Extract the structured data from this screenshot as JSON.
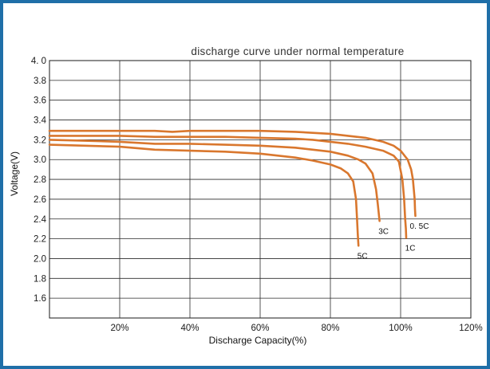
{
  "chart_data": {
    "type": "line",
    "title": "discharge curve under normal temperature",
    "xlabel": "Discharge Capacity(%)",
    "ylabel": "Voltage(V)",
    "xlim": [
      0,
      120
    ],
    "ylim": [
      1.4,
      4.0
    ],
    "xticks": [
      "20%",
      "40%",
      "60%",
      "80%",
      "100%",
      "120%"
    ],
    "xtick_values": [
      20,
      40,
      60,
      80,
      100,
      120
    ],
    "yticks": [
      "4. 0",
      "3.8",
      "3.6",
      "3.4",
      "3.2",
      "3.0",
      "2.8",
      "2.6",
      "2.4",
      "2.2",
      "2.0",
      "1.8",
      "1.6"
    ],
    "ytick_values": [
      4.0,
      3.8,
      3.6,
      3.4,
      3.2,
      3.0,
      2.8,
      2.6,
      2.4,
      2.2,
      2.0,
      1.8,
      1.6
    ],
    "grid": true,
    "line_color": "#d9772e",
    "series": [
      {
        "name": "0. 5C",
        "x": [
          0,
          10,
          20,
          30,
          35,
          40,
          50,
          60,
          70,
          75,
          80,
          85,
          90,
          95,
          98,
          100,
          102,
          103,
          103.5,
          104,
          104.1,
          104.2
        ],
        "y": [
          3.29,
          3.29,
          3.29,
          3.29,
          3.28,
          3.29,
          3.29,
          3.29,
          3.28,
          3.27,
          3.26,
          3.24,
          3.22,
          3.18,
          3.14,
          3.09,
          3.0,
          2.9,
          2.8,
          2.6,
          2.5,
          2.43
        ]
      },
      {
        "name": "1C",
        "x": [
          0,
          10,
          20,
          30,
          40,
          50,
          60,
          70,
          75,
          80,
          85,
          90,
          95,
          98,
          99.5,
          100.5,
          101,
          101.3,
          101.5,
          101.6
        ],
        "y": [
          3.24,
          3.24,
          3.24,
          3.23,
          3.23,
          3.23,
          3.22,
          3.21,
          3.2,
          3.18,
          3.16,
          3.13,
          3.09,
          3.04,
          2.98,
          2.8,
          2.6,
          2.4,
          2.3,
          2.21
        ]
      },
      {
        "name": "3C",
        "x": [
          0,
          10,
          20,
          30,
          40,
          50,
          60,
          70,
          75,
          80,
          85,
          88,
          90,
          92,
          93,
          93.5,
          93.8,
          94
        ],
        "y": [
          3.2,
          3.19,
          3.18,
          3.16,
          3.16,
          3.15,
          3.14,
          3.12,
          3.1,
          3.08,
          3.04,
          3.0,
          2.96,
          2.86,
          2.7,
          2.55,
          2.45,
          2.38
        ]
      },
      {
        "name": "5C",
        "x": [
          0,
          10,
          20,
          30,
          40,
          50,
          60,
          70,
          75,
          80,
          83,
          85,
          86.5,
          87.3,
          87.6,
          87.8,
          87.9,
          88
        ],
        "y": [
          3.15,
          3.14,
          3.13,
          3.1,
          3.09,
          3.08,
          3.06,
          3.02,
          2.99,
          2.95,
          2.91,
          2.86,
          2.78,
          2.6,
          2.4,
          2.25,
          2.18,
          2.13
        ]
      }
    ]
  }
}
